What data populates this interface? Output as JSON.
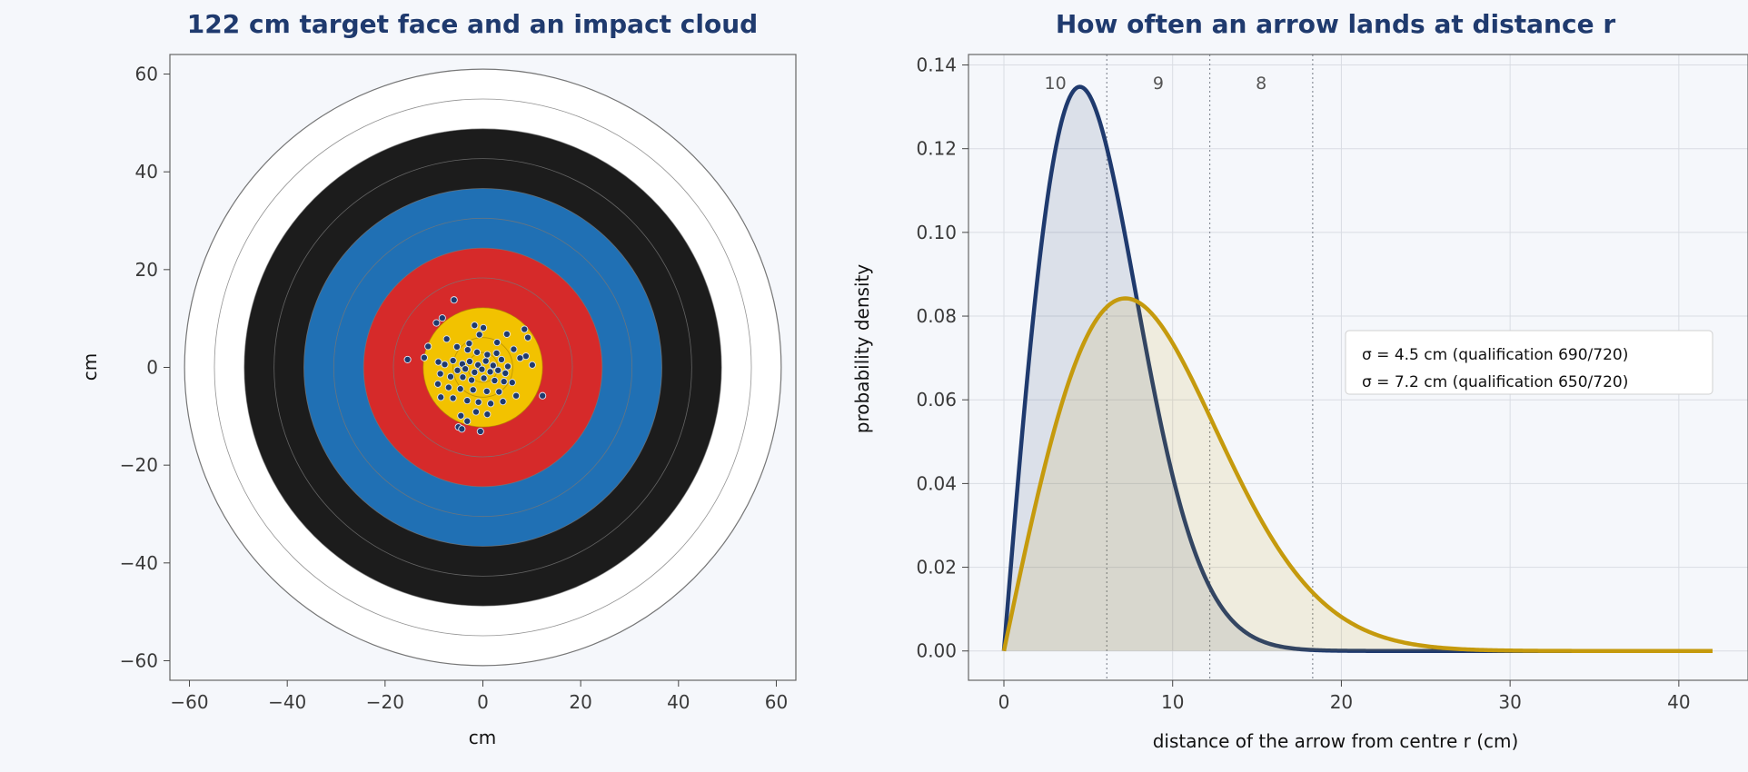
{
  "chart_data": [
    {
      "type": "scatter",
      "title": "122 cm target face and an impact cloud",
      "xlabel": "cm",
      "ylabel": "cm",
      "xlim": [
        -64,
        64
      ],
      "ylim": [
        -64,
        64
      ],
      "xticks": [
        -60,
        -40,
        -20,
        0,
        20,
        40,
        60
      ],
      "yticks": [
        -60,
        -40,
        -20,
        0,
        20,
        40,
        60
      ],
      "tick_labels": [
        "−60",
        "−40",
        "−20",
        "0",
        "20",
        "40",
        "60"
      ],
      "rings": [
        {
          "radius": 61,
          "color": "#ffffff"
        },
        {
          "radius": 48.8,
          "color": "#1c1c1c"
        },
        {
          "radius": 36.6,
          "color": "#2070b4"
        },
        {
          "radius": 24.4,
          "color": "#d62a2a"
        },
        {
          "radius": 12.2,
          "color": "#f2c200"
        }
      ],
      "ring_lines": [
        61,
        54.9,
        48.8,
        42.7,
        36.6,
        30.5,
        24.4,
        18.3,
        12.2,
        6.1,
        3.05
      ],
      "point_color": "#1f3a6e",
      "points": [
        [
          -5.9,
          13.8
        ],
        [
          -9.5,
          9.1
        ],
        [
          -8.3,
          10.1
        ],
        [
          -1.7,
          8.6
        ],
        [
          0.1,
          8.1
        ],
        [
          4.9,
          6.8
        ],
        [
          8.5,
          7.8
        ],
        [
          9.2,
          6.1
        ],
        [
          8.8,
          2.3
        ],
        [
          7.6,
          1.9
        ],
        [
          10.1,
          0.5
        ],
        [
          -15.4,
          1.6
        ],
        [
          -12.0,
          2.0
        ],
        [
          -11.2,
          4.3
        ],
        [
          -7.4,
          5.8
        ],
        [
          -5.3,
          4.2
        ],
        [
          -2.8,
          4.9
        ],
        [
          -0.7,
          6.7
        ],
        [
          2.9,
          5.1
        ],
        [
          6.3,
          3.7
        ],
        [
          -3.1,
          3.6
        ],
        [
          -1.2,
          3.1
        ],
        [
          0.9,
          2.6
        ],
        [
          2.8,
          2.9
        ],
        [
          -9.1,
          1.1
        ],
        [
          -7.8,
          0.6
        ],
        [
          -6.1,
          1.4
        ],
        [
          -4.2,
          0.7
        ],
        [
          -2.7,
          1.2
        ],
        [
          -1.0,
          0.5
        ],
        [
          0.6,
          1.3
        ],
        [
          2.1,
          0.4
        ],
        [
          3.8,
          1.6
        ],
        [
          5.1,
          0.2
        ],
        [
          -5.2,
          -0.6
        ],
        [
          -3.6,
          -0.3
        ],
        [
          -1.7,
          -1.0
        ],
        [
          -0.2,
          -0.4
        ],
        [
          1.5,
          -0.9
        ],
        [
          3.1,
          -0.6
        ],
        [
          4.6,
          -1.2
        ],
        [
          -8.7,
          -1.3
        ],
        [
          -6.6,
          -1.9
        ],
        [
          -4.1,
          -2.0
        ],
        [
          -2.3,
          -2.6
        ],
        [
          0.2,
          -2.2
        ],
        [
          2.4,
          -2.7
        ],
        [
          4.3,
          -2.9
        ],
        [
          6.0,
          -3.1
        ],
        [
          -9.2,
          -3.4
        ],
        [
          -7.0,
          -4.1
        ],
        [
          -4.6,
          -4.4
        ],
        [
          -2.0,
          -4.6
        ],
        [
          0.8,
          -4.9
        ],
        [
          3.3,
          -5.0
        ],
        [
          -6.1,
          -6.3
        ],
        [
          -3.2,
          -6.8
        ],
        [
          -0.9,
          -7.1
        ],
        [
          1.6,
          -7.4
        ],
        [
          4.1,
          -7.0
        ],
        [
          6.8,
          -5.8
        ],
        [
          -8.6,
          -6.1
        ],
        [
          -4.5,
          -9.9
        ],
        [
          -3.2,
          -11.0
        ],
        [
          -5.0,
          -12.2
        ],
        [
          -4.3,
          -12.6
        ],
        [
          -0.5,
          -13.1
        ],
        [
          0.9,
          -9.6
        ],
        [
          12.2,
          -5.8
        ],
        [
          -1.4,
          -9.1
        ]
      ]
    },
    {
      "type": "area",
      "title": "How often an arrow lands at distance r",
      "xlabel": "distance of the arrow from centre  r (cm)",
      "ylabel": "probability density",
      "xlim": [
        -2.1,
        44.1
      ],
      "ylim": [
        -0.007,
        0.1425
      ],
      "xticks": [
        0,
        10,
        20,
        30,
        40
      ],
      "yticks": [
        0.0,
        0.02,
        0.04,
        0.06,
        0.08,
        0.1,
        0.12,
        0.14
      ],
      "ytick_labels": [
        "0.00",
        "0.02",
        "0.04",
        "0.06",
        "0.08",
        "0.10",
        "0.12",
        "0.14"
      ],
      "distribution": "Rayleigh",
      "x_range": [
        0,
        42
      ],
      "series": [
        {
          "name": "σ = 4.5 cm  (qualification 690/720)",
          "sigma": 4.5,
          "color": "#1f3a6e"
        },
        {
          "name": "σ = 7.2 cm  (qualification 650/720)",
          "sigma": 7.2,
          "color": "#c59a0d"
        }
      ],
      "legend_placement": "center-right",
      "ring_boundaries": [
        6.1,
        12.2,
        18.3
      ],
      "ring_labels": [
        "10",
        "9",
        "8"
      ],
      "grid": true
    }
  ]
}
